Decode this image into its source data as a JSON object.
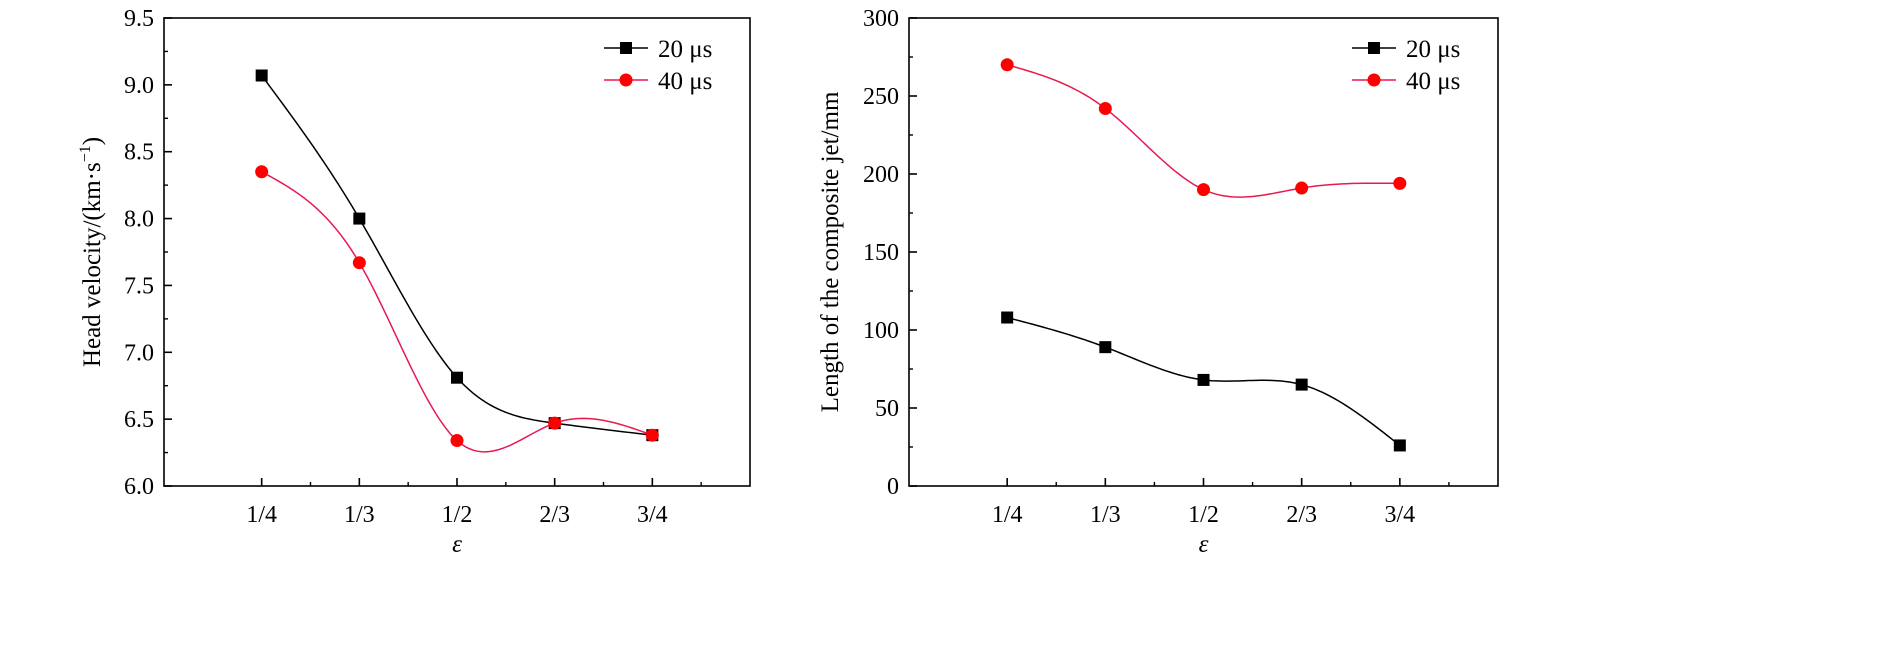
{
  "chart_data": [
    {
      "type": "line",
      "categories": [
        "1/4",
        "1/3",
        "1/2",
        "2/3",
        "3/4"
      ],
      "xlabel": "ε",
      "ylabel": "Head velocity/(km·s⁻¹)",
      "ylabel_base": "Head velocity/(km·s",
      "ylabel_exp": "−1",
      "ylabel_end": ")",
      "ylim": [
        6.0,
        9.5
      ],
      "yticks": [
        "6.0",
        "6.5",
        "7.0",
        "7.5",
        "8.0",
        "8.5",
        "9.0",
        "9.5"
      ],
      "legend_position": "top-right",
      "series": [
        {
          "name": "20 μs",
          "marker": "square",
          "color": "#000000",
          "values": [
            9.07,
            8.0,
            6.81,
            6.47,
            6.38
          ]
        },
        {
          "name": "40 μs",
          "marker": "circle",
          "color": "#ff0000",
          "line_color": "#e8194f",
          "values": [
            8.35,
            7.67,
            6.34,
            6.47,
            6.38
          ]
        }
      ]
    },
    {
      "type": "line",
      "categories": [
        "1/4",
        "1/3",
        "1/2",
        "2/3",
        "3/4"
      ],
      "xlabel": "ε",
      "ylabel": "Length of the composite jet/mm",
      "ylim": [
        0,
        300
      ],
      "yticks": [
        "0",
        "50",
        "100",
        "150",
        "200",
        "250",
        "300"
      ],
      "legend_position": "top-right",
      "series": [
        {
          "name": "20 μs",
          "marker": "square",
          "color": "#000000",
          "values": [
            108,
            89,
            68,
            65,
            26
          ]
        },
        {
          "name": "40 μs",
          "marker": "circle",
          "color": "#ff0000",
          "line_color": "#e8194f",
          "values": [
            270,
            242,
            190,
            191,
            194
          ]
        }
      ]
    }
  ]
}
